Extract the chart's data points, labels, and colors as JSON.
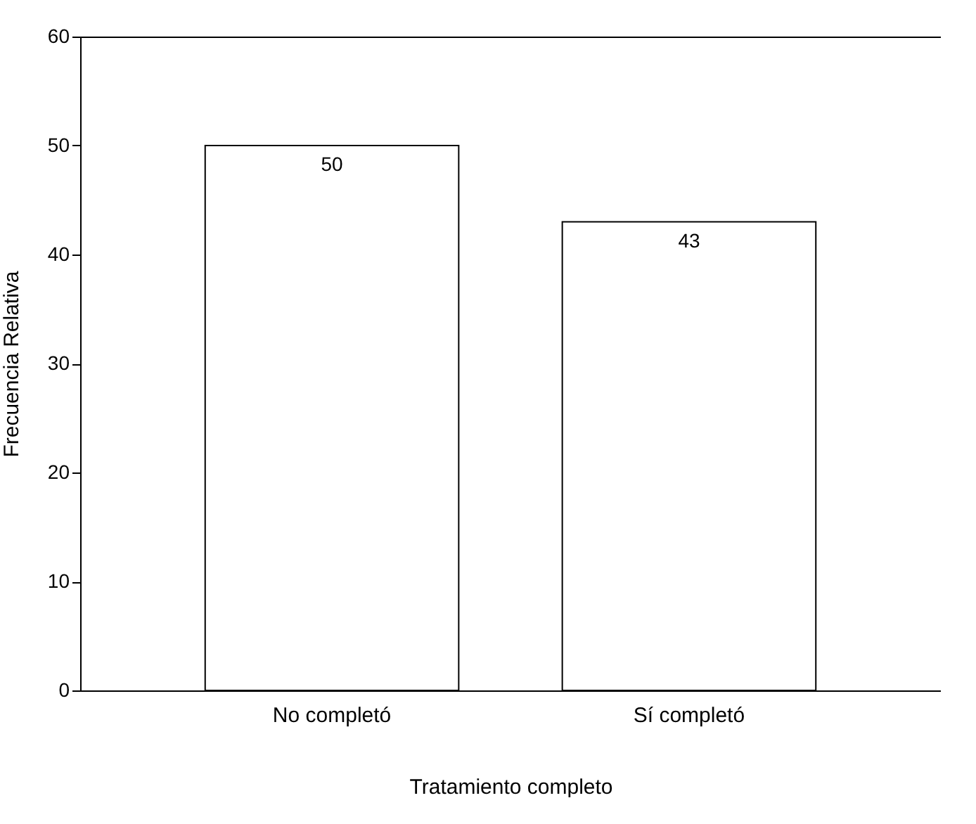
{
  "chart_data": {
    "type": "bar",
    "xlabel": "Tratamiento completo",
    "ylabel": "Frecuencia Relativa",
    "categories": [
      "No completó",
      "Sí completó"
    ],
    "values": [
      50,
      43
    ],
    "color": "#ffffff",
    "ylim": [
      0,
      60
    ],
    "yticks": [
      0,
      10,
      20,
      30,
      40,
      50,
      60
    ],
    "grid": false,
    "data_labels": true
  }
}
